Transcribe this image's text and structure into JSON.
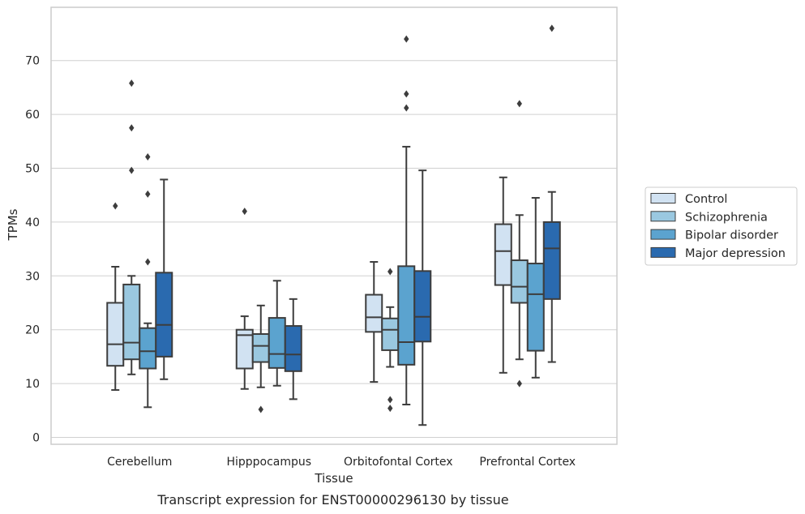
{
  "chart_data": {
    "type": "boxplot",
    "xlabel": "Tissue",
    "ylabel": "TPMs",
    "caption": "Transcript expression for ENST00000296130 by tissue",
    "ylim": [
      -1,
      80
    ],
    "yticks": [
      0,
      10,
      20,
      30,
      40,
      50,
      60,
      70
    ],
    "grid": "horizontal",
    "legend_placement": "right",
    "categories": [
      "Cerebellum",
      "Hipppocampus",
      "Orbitofontal Cortex",
      "Prefrontal Cortex"
    ],
    "series": [
      {
        "name": "Control",
        "color": "#d1e2f2",
        "boxes": [
          {
            "whisker_low": 8.8,
            "q1": 13.3,
            "median": 17.3,
            "q3": 25.0,
            "whisker_high": 31.7,
            "outliers": [
              43.0
            ]
          },
          {
            "whisker_low": 9.0,
            "q1": 12.8,
            "median": 19.0,
            "q3": 20.0,
            "whisker_high": 22.5,
            "outliers": [
              42.0
            ]
          },
          {
            "whisker_low": 10.3,
            "q1": 19.6,
            "median": 22.3,
            "q3": 26.5,
            "whisker_high": 32.6,
            "outliers": []
          },
          {
            "whisker_low": 12.0,
            "q1": 28.3,
            "median": 34.6,
            "q3": 39.6,
            "whisker_high": 48.3,
            "outliers": []
          }
        ]
      },
      {
        "name": "Schizophrenia",
        "color": "#9ac8e0",
        "boxes": [
          {
            "whisker_low": 11.7,
            "q1": 14.5,
            "median": 17.6,
            "q3": 28.4,
            "whisker_high": 30.0,
            "outliers": [
              49.6,
              57.5,
              65.8
            ]
          },
          {
            "whisker_low": 9.3,
            "q1": 14.0,
            "median": 17.0,
            "q3": 19.2,
            "whisker_high": 24.5,
            "outliers": [
              5.2
            ]
          },
          {
            "whisker_low": 13.1,
            "q1": 16.2,
            "median": 20.0,
            "q3": 22.1,
            "whisker_high": 24.2,
            "outliers": [
              30.8,
              5.4,
              7.0
            ]
          },
          {
            "whisker_low": 14.5,
            "q1": 25.0,
            "median": 28.0,
            "q3": 32.9,
            "whisker_high": 41.3,
            "outliers": [
              10.0,
              62.0
            ]
          }
        ]
      },
      {
        "name": "Bipolar disorder",
        "color": "#5ba3cf",
        "boxes": [
          {
            "whisker_low": 5.6,
            "q1": 12.8,
            "median": 16.0,
            "q3": 20.3,
            "whisker_high": 21.2,
            "outliers": [
              32.6,
              45.2,
              52.1
            ]
          },
          {
            "whisker_low": 9.6,
            "q1": 12.9,
            "median": 15.5,
            "q3": 22.2,
            "whisker_high": 29.1,
            "outliers": []
          },
          {
            "whisker_low": 6.1,
            "q1": 13.5,
            "median": 17.7,
            "q3": 31.8,
            "whisker_high": 54.0,
            "outliers": [
              61.2,
              63.8,
              74.0
            ]
          },
          {
            "whisker_low": 11.1,
            "q1": 16.1,
            "median": 26.6,
            "q3": 32.3,
            "whisker_high": 44.5,
            "outliers": []
          }
        ]
      },
      {
        "name": "Major depression",
        "color": "#2a6aaf",
        "boxes": [
          {
            "whisker_low": 10.8,
            "q1": 15.0,
            "median": 20.9,
            "q3": 30.6,
            "whisker_high": 47.9,
            "outliers": []
          },
          {
            "whisker_low": 7.1,
            "q1": 12.3,
            "median": 15.4,
            "q3": 20.7,
            "whisker_high": 25.7,
            "outliers": []
          },
          {
            "whisker_low": 2.3,
            "q1": 17.8,
            "median": 22.4,
            "q3": 30.9,
            "whisker_high": 49.6,
            "outliers": []
          },
          {
            "whisker_low": 14.0,
            "q1": 25.7,
            "median": 35.1,
            "q3": 40.0,
            "whisker_high": 45.6,
            "outliers": [
              76.0
            ]
          }
        ]
      }
    ]
  }
}
